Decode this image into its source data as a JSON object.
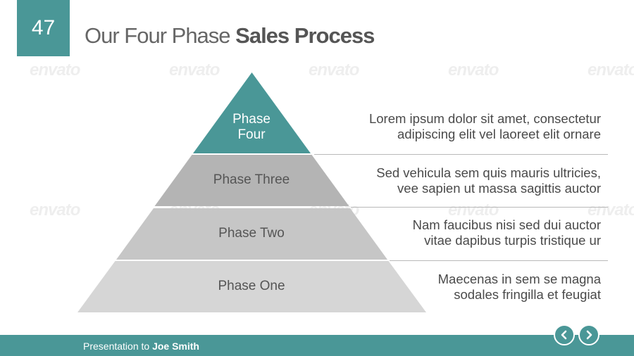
{
  "slide": {
    "number": "47",
    "title_regular": "Our Four Phase ",
    "title_bold": "Sales Process",
    "accent_color": "#4a9797"
  },
  "pyramid": {
    "phases": [
      {
        "label_line1": "Phase",
        "label_line2": "Four",
        "color": "#4a9797"
      },
      {
        "label": "Phase Three",
        "color": "#b4b4b4"
      },
      {
        "label": "Phase Two",
        "color": "#c6c6c6"
      },
      {
        "label": "Phase One",
        "color": "#d6d6d6"
      }
    ],
    "descriptions": [
      {
        "line1": "Lorem ipsum dolor sit amet, consectetur",
        "line2": "adipiscing elit vel laoreet elit ornare"
      },
      {
        "line1": "Sed vehicula sem quis mauris ultricies,",
        "line2": "vee sapien ut massa sagittis auctor"
      },
      {
        "line1": "Nam faucibus nisi sed dui auctor",
        "line2": "vitae dapibus turpis tristique ur"
      },
      {
        "line1": "Maecenas in sem se magna",
        "line2": "sodales fringilla et feugiat"
      }
    ]
  },
  "footer": {
    "presented_prefix": "Presentation to ",
    "presented_name": "Joe Smith",
    "prev_icon": "chevron-left-icon",
    "next_icon": "chevron-right-icon"
  },
  "watermark": {
    "text": "envato"
  }
}
